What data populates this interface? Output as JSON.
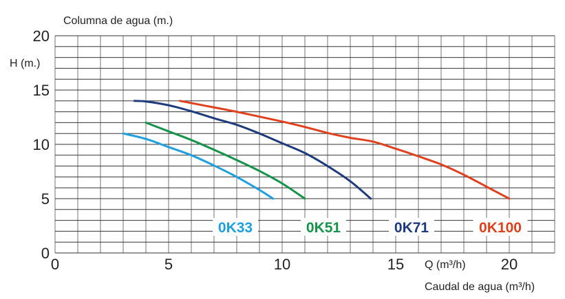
{
  "chart_data": {
    "type": "line",
    "title": "Columna de agua (m.)",
    "ylabel": "H (m.)",
    "xlabel": "Caudal de agua (m³/h)",
    "xlabel_inline": "Q (m³/h)",
    "xlim": [
      0,
      22
    ],
    "ylim": [
      0,
      20
    ],
    "xticks": [
      "0",
      "5",
      "10",
      "15",
      "20"
    ],
    "yticks": [
      "0",
      "5",
      "10",
      "15",
      "20"
    ],
    "grid": true,
    "legend_position": "bottom-right, inline",
    "series": [
      {
        "name": "0K33",
        "color": "#1e9fe0",
        "x": [
          3,
          4,
          5,
          6,
          7,
          8,
          9,
          9.6
        ],
        "y": [
          11,
          10.5,
          9.75,
          9,
          8.05,
          7,
          5.8,
          5
        ]
      },
      {
        "name": "0K51",
        "color": "#16934a",
        "x": [
          4,
          5,
          6,
          7,
          8,
          9,
          10,
          11
        ],
        "y": [
          12,
          11.2,
          10.4,
          9.5,
          8.55,
          7.55,
          6.4,
          5
        ]
      },
      {
        "name": "0K71",
        "color": "#1d3b7c",
        "x": [
          3.5,
          4,
          5,
          6,
          7,
          8,
          9,
          10,
          11,
          12,
          13,
          13.9
        ],
        "y": [
          14,
          13.95,
          13.6,
          13.05,
          12.4,
          11.8,
          11,
          10.1,
          9.2,
          8,
          6.6,
          5
        ]
      },
      {
        "name": "0K100",
        "color": "#e0401c",
        "x": [
          5.5,
          6,
          7,
          8,
          9,
          10,
          11,
          12,
          13,
          14,
          15,
          16,
          17,
          18,
          19,
          20
        ],
        "y": [
          14,
          13.8,
          13.4,
          13,
          12.55,
          12.1,
          11.6,
          11.05,
          10.6,
          10.25,
          9.6,
          8.9,
          8.15,
          7.2,
          6.1,
          5
        ]
      }
    ]
  }
}
